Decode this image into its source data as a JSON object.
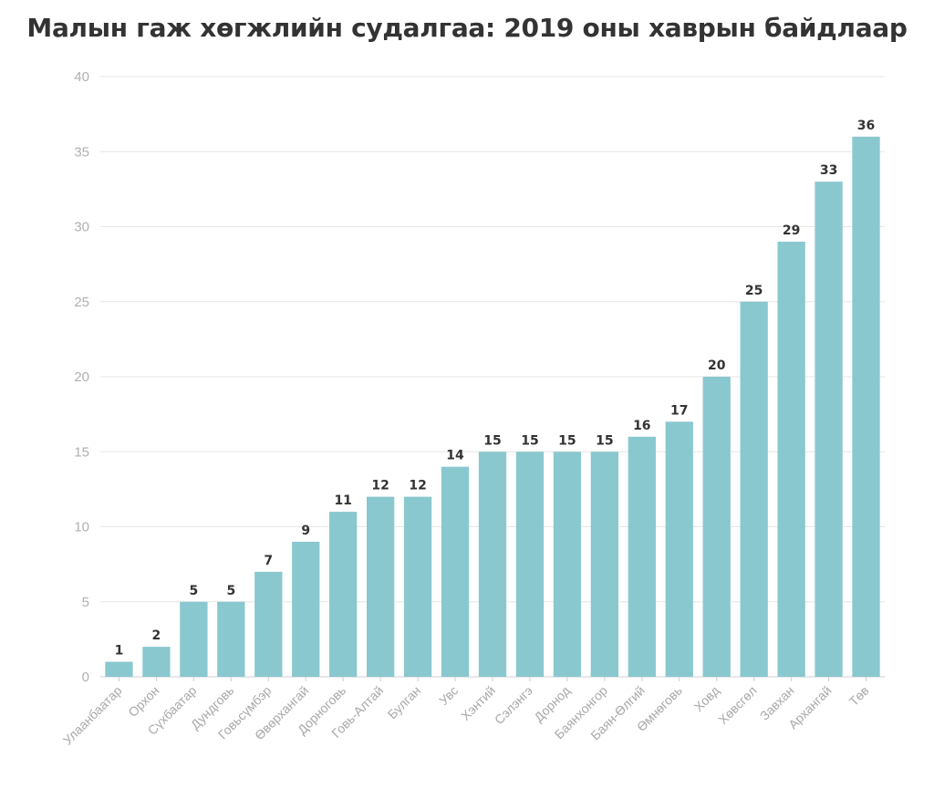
{
  "chart_data": {
    "type": "bar",
    "title": "Малын гаж хөгжлийн судалгаа: 2019 оны хаврын байдлаар",
    "xlabel": "",
    "ylabel": "",
    "ylim": [
      0,
      40
    ],
    "yticks": [
      0,
      5,
      10,
      15,
      20,
      25,
      30,
      35,
      40
    ],
    "grid": true,
    "bar_color": "#8ac8cf",
    "categories": [
      "Улаанбаатар",
      "Орхон",
      "Сүхбаатар",
      "Дундговь",
      "Говьсүмбэр",
      "Өвөрхангай",
      "Дорноговь",
      "Говь-Алтай",
      "Булган",
      "Увс",
      "Хэнтий",
      "Сэлэнгэ",
      "Дорнод",
      "Баянхонгор",
      "Баян-Өлгий",
      "Өмнөговь",
      "Ховд",
      "Хөвсгөл",
      "Завхан",
      "Архангай",
      "Төв"
    ],
    "values": [
      1,
      2,
      5,
      5,
      7,
      9,
      11,
      12,
      12,
      14,
      15,
      15,
      15,
      15,
      16,
      17,
      20,
      25,
      29,
      33,
      36
    ]
  }
}
